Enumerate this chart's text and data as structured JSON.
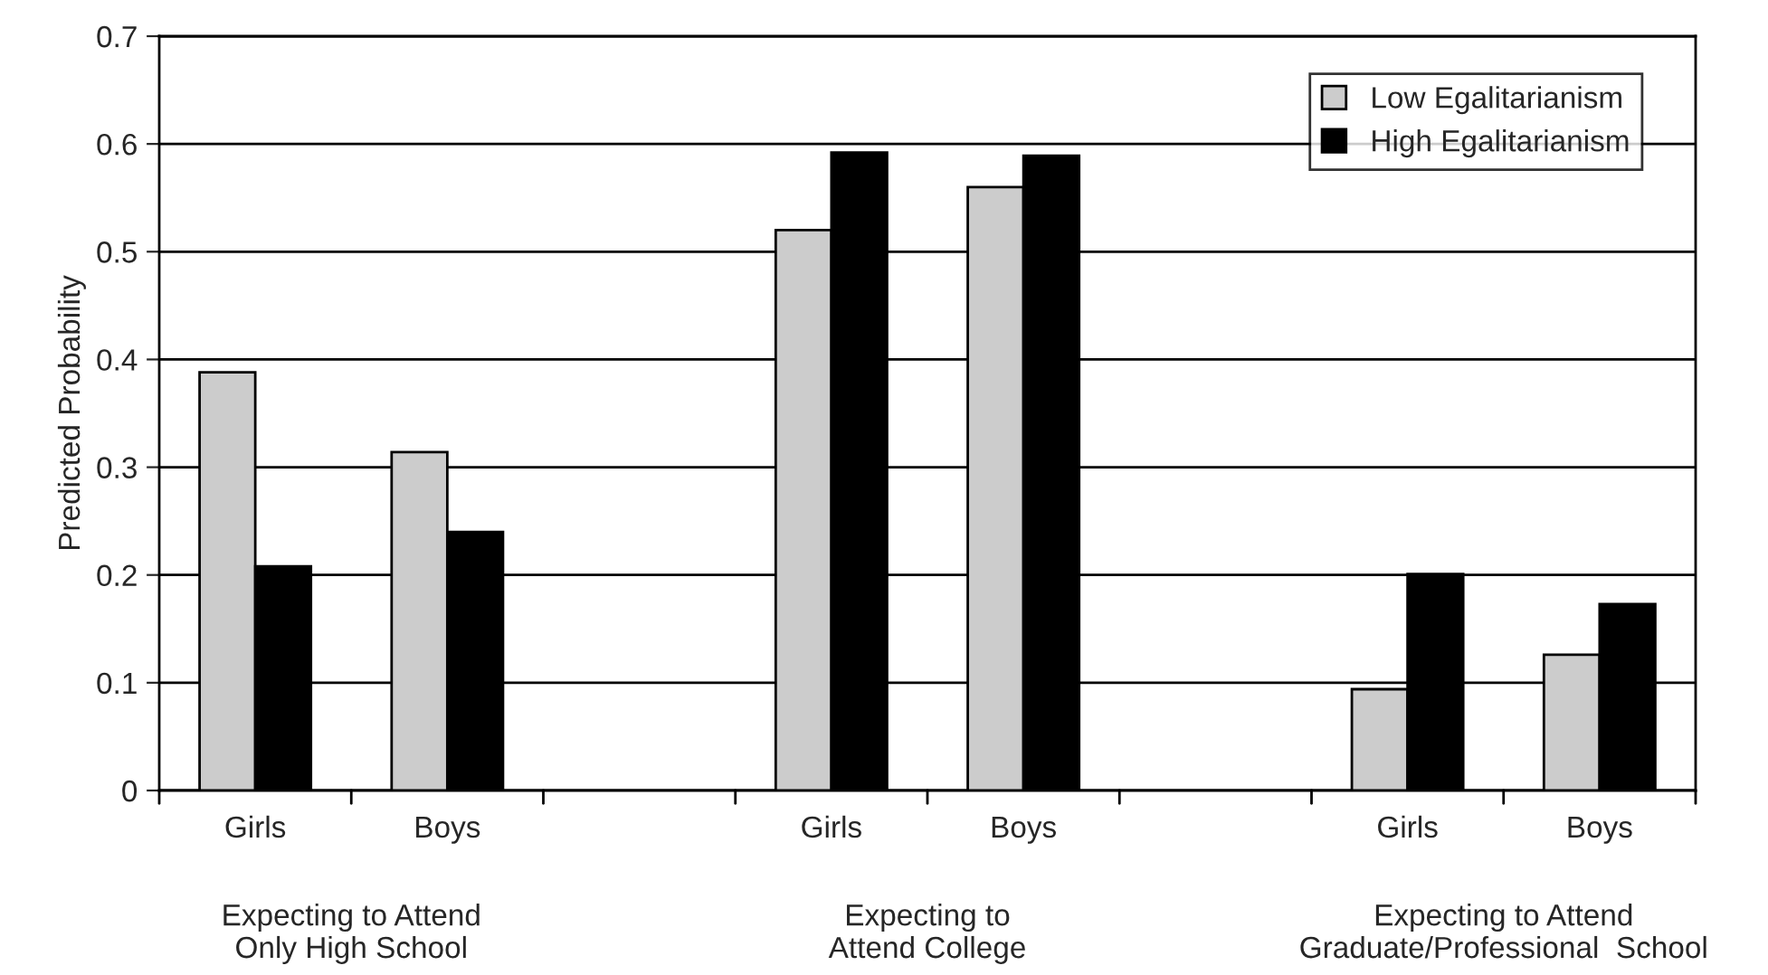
{
  "chart_data": {
    "type": "bar",
    "ylabel": "Predicted Probability",
    "categories": [
      "Girls",
      "Boys",
      null,
      "Girls",
      "Boys",
      null,
      "Girls",
      "Boys"
    ],
    "series": [
      {
        "name": "Low Egalitarianism",
        "color": "#cccccc",
        "values": [
          0.388,
          0.314,
          null,
          0.52,
          0.56,
          null,
          0.094,
          0.126
        ]
      },
      {
        "name": "High Egalitarianism",
        "color": "#000000",
        "values": [
          0.208,
          0.24,
          null,
          0.592,
          0.589,
          null,
          0.201,
          0.173
        ]
      }
    ],
    "ylim": [
      0,
      0.7
    ],
    "yticks": [
      0,
      0.1,
      0.2,
      0.3,
      0.4,
      0.5,
      0.6,
      0.7
    ],
    "grid": "y",
    "legend": "top right",
    "annotations": [
      "Expecting to Attend\nOnly High School",
      "Expecting to\nAttend College",
      "Expecting to Attend\nGraduate/Professional  School"
    ]
  }
}
